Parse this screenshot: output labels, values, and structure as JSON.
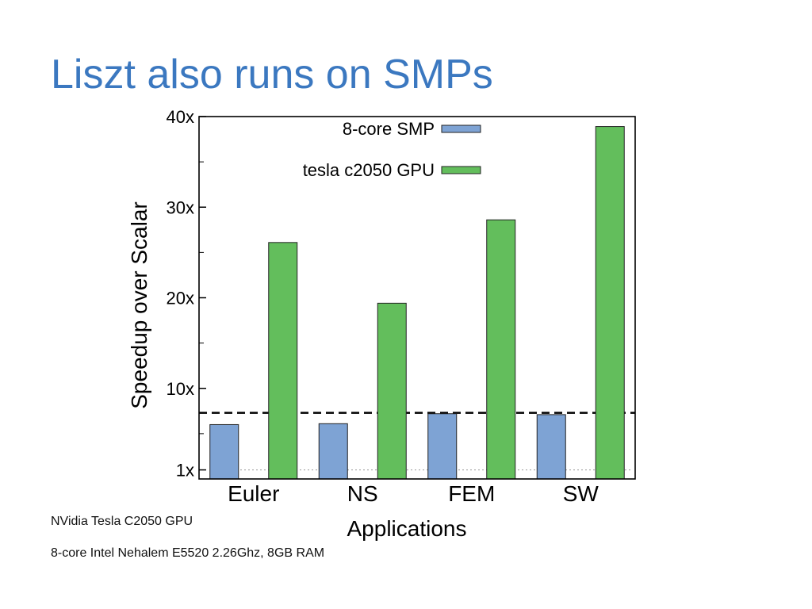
{
  "slide": {
    "title": "Liszt also runs on SMPs",
    "notes": [
      "NVidia Tesla C2050 GPU",
      "8-core Intel Nehalem E5520 2.26Ghz, 8GB RAM"
    ]
  },
  "chart_data": {
    "type": "bar",
    "categories": [
      "Euler",
      "NS",
      "FEM",
      "SW"
    ],
    "series": [
      {
        "name": "8-core SMP",
        "color": "#7ea3d4",
        "values": [
          6,
          6.1,
          7.2,
          7.1
        ]
      },
      {
        "name": "tesla c2050 GPU",
        "color": "#63be5c",
        "values": [
          26.1,
          19.4,
          28.6,
          38.9
        ]
      }
    ],
    "xlabel": "Applications",
    "ylabel": "Speedup over Scalar",
    "ylim": [
      0,
      40
    ],
    "yticks": [
      {
        "value": 1,
        "label": "1x"
      },
      {
        "value": 10,
        "label": "10x"
      },
      {
        "value": 20,
        "label": "20x"
      },
      {
        "value": 30,
        "label": "30x"
      },
      {
        "value": 40,
        "label": "40x"
      }
    ],
    "yminor_ticks": [
      5,
      15,
      25,
      35
    ],
    "reference_lines": [
      {
        "value": 7.3,
        "style": "dashed"
      },
      {
        "value": 1,
        "style": "dotted"
      }
    ],
    "legend": "top-center"
  }
}
